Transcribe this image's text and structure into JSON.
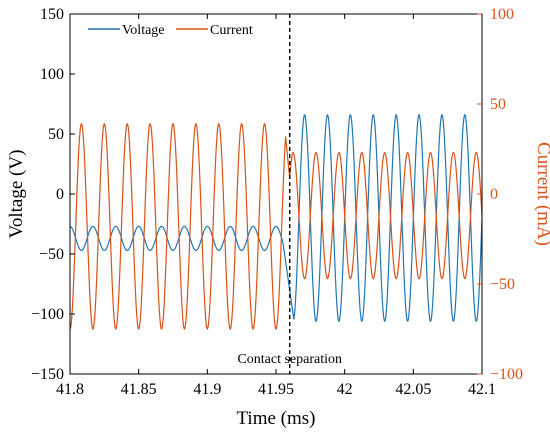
{
  "chart_data": {
    "type": "line",
    "xlabel": "Time (ms)",
    "ylabel_left": "Voltage (V)",
    "ylabel_right": "Current (mA)",
    "xlim": [
      41.8,
      42.1
    ],
    "ylim_left": [
      -150,
      150
    ],
    "ylim_right": [
      -100,
      100
    ],
    "x_ticks": [
      "41.8",
      "41.85",
      "41.9",
      "41.95",
      "42",
      "42.05",
      "42.1"
    ],
    "y_ticks_left": [
      "150",
      "100",
      "50",
      "0",
      "−50",
      "−100",
      "−150"
    ],
    "y_ticks_right": [
      "100",
      "50",
      "0",
      "−50",
      "−100"
    ],
    "grid": false,
    "legend_position": "top-left",
    "annotation": {
      "label": "Contact separation",
      "x": 41.96
    },
    "series": [
      {
        "name": "Voltage",
        "axis": "left",
        "color": "#1f77b4",
        "segments": [
          {
            "x_start": 41.8,
            "x_end": 41.955,
            "offset": -37,
            "amplitude": 10,
            "cycles_per_ms": 60,
            "phase_deg": 90
          },
          {
            "x_start": 41.963,
            "x_end": 42.1,
            "offset": -20,
            "amplitude": 86,
            "cycles_per_ms": 60,
            "phase_deg": 0
          }
        ]
      },
      {
        "name": "Current",
        "axis": "right",
        "color": "#d95319",
        "segments": [
          {
            "x_start": 41.8,
            "x_end": 41.957,
            "offset": -18,
            "amplitude": 57,
            "cycles_per_ms": 60,
            "phase_deg": 270
          },
          {
            "x_start": 41.96,
            "x_end": 42.1,
            "offset": -12,
            "amplitude": 35,
            "cycles_per_ms": 60,
            "phase_deg": 180
          }
        ]
      }
    ]
  }
}
